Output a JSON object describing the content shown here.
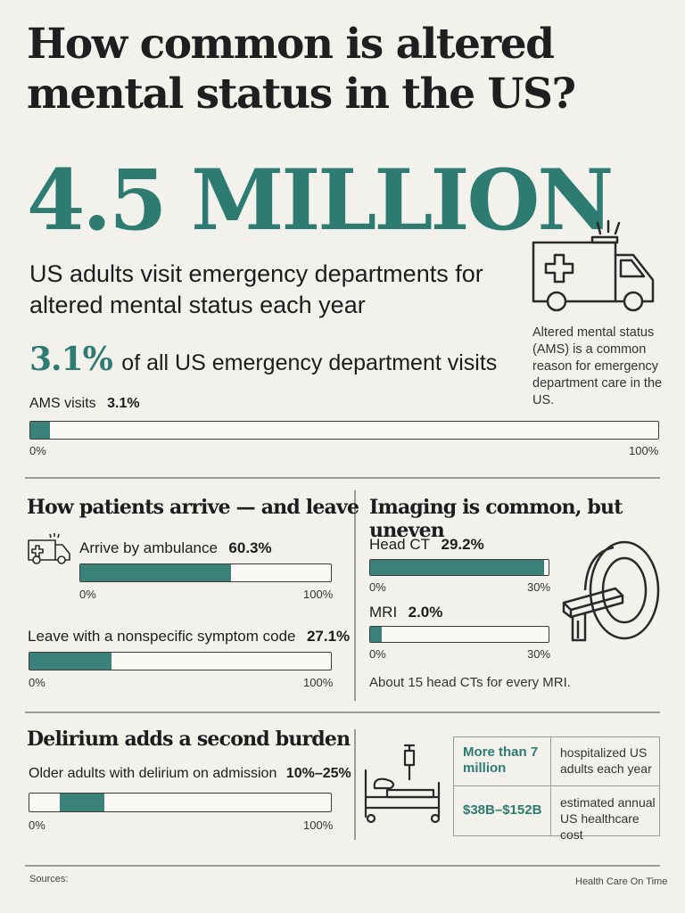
{
  "title": "How common is altered mental status in the US?",
  "hero": {
    "big_number": "4.5 MILLION",
    "subline": "US adults visit emergency departments for altered mental status each year",
    "share_value": "3.1%",
    "share_text": "of all US emergency department visits",
    "side_note": "Altered mental status (AMS) is a common reason for emergency department care in the US.",
    "ams_bar": {
      "label": "AMS visits",
      "value_text": "3.1%",
      "fraction": 0.031,
      "min_label": "0%",
      "max_label": "100%"
    },
    "icon": "ambulance-icon"
  },
  "arrive_leave": {
    "title": "How patients arrive — and leave",
    "ambulance": {
      "label": "Arrive by ambulance",
      "value_text": "60.3%",
      "fraction": 0.603,
      "min_label": "0%",
      "max_label": "100%",
      "icon": "ambulance-icon"
    },
    "symptom_code": {
      "label": "Leave with a nonspecific symptom code",
      "value_text": "27.1%",
      "fraction": 0.271,
      "min_label": "0%",
      "max_label": "100%"
    }
  },
  "imaging": {
    "title": "Imaging is common, but uneven",
    "head_ct": {
      "label": "Head CT",
      "value_text": "29.2%",
      "fraction": 0.973,
      "min_label": "0%",
      "max_label": "30%"
    },
    "mri": {
      "label": "MRI",
      "value_text": "2.0%",
      "fraction": 0.067,
      "min_label": "0%",
      "max_label": "30%"
    },
    "note": "About 15 head CTs for every MRI.",
    "icon": "mri-scanner-icon"
  },
  "delirium": {
    "title": "Delirium adds a second burden",
    "bar": {
      "label": "Older adults with delirium on admission",
      "value_text": "10%–25%",
      "start": 0.1,
      "end": 0.25,
      "min_label": "0%",
      "max_label": "100%"
    },
    "icon": "hospital-bed-icon",
    "table": [
      {
        "key": "More than 7 million",
        "desc": "hospitalized US adults each year"
      },
      {
        "key": "$38B–$152B",
        "desc": "estimated annual US healthcare cost"
      }
    ]
  },
  "footer": {
    "sources": "Sources:",
    "brand": "Health Care On Time"
  },
  "colors": {
    "accent": "#2e7b72",
    "bar_fill": "#3a8279",
    "background": "#f3f1ec"
  }
}
